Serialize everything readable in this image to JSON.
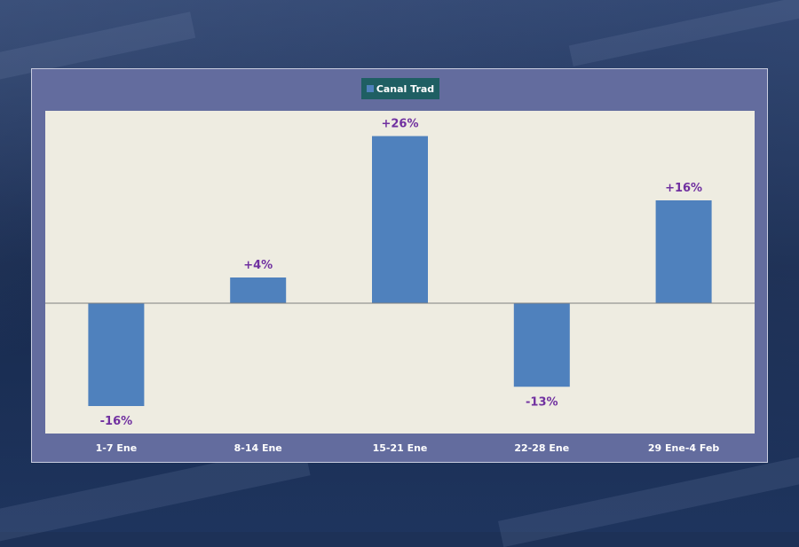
{
  "chart_data": {
    "type": "bar",
    "categories": [
      "1-7 Ene",
      "8-14 Ene",
      "15-21 Ene",
      "22-28 Ene",
      "29 Ene-4 Feb"
    ],
    "series": [
      {
        "name": "Canal Trad",
        "values": [
          -16,
          4,
          26,
          -13,
          16
        ]
      }
    ],
    "data_labels": [
      "-16%",
      "+4%",
      "+26%",
      "-13%",
      "+16%"
    ],
    "ylim": [
      -20,
      30
    ],
    "grid": false,
    "legend_position": "top-center",
    "colors": {
      "bar": "#4f81bd",
      "plot_background": "#eeece1",
      "panel_background": "#636c9e",
      "data_label": "#7030a0",
      "axis_label": "#ffffff",
      "legend_background": "#1f5f63"
    }
  }
}
